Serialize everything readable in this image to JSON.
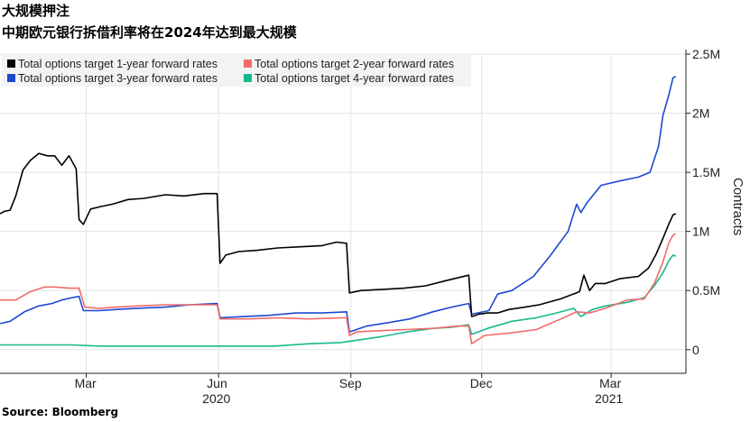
{
  "header": {
    "title": "大规模押注",
    "subtitle": "中期欧元银行拆借利率将在2024年达到最大规模"
  },
  "footer": {
    "source": "Source: Bloomberg"
  },
  "chart_data": {
    "type": "line",
    "title": "大规模押注",
    "subtitle": "中期欧元银行拆借利率将在2024年达到最大规模",
    "ylabel": "Contracts",
    "y_axis_position": "right",
    "y_unit": "contracts",
    "ylim": [
      -200000,
      2500000
    ],
    "yticks": [
      0,
      500000,
      1000000,
      1500000,
      2000000,
      2500000
    ],
    "ytick_labels": [
      "0",
      "0.5M",
      "1M",
      "1.5M",
      "2M",
      "2.5M"
    ],
    "xlim": [
      "2020-01-01",
      "2021-04-22"
    ],
    "xticks": [
      {
        "date": "2020-03-01",
        "label": "Mar"
      },
      {
        "date": "2020-06-01",
        "label": "Jun"
      },
      {
        "date": "2020-09-01",
        "label": "Sep"
      },
      {
        "date": "2020-12-01",
        "label": "Dec"
      },
      {
        "date": "2021-03-01",
        "label": "Mar"
      }
    ],
    "year_labels": [
      {
        "date": "2020-06-01",
        "label": "2020"
      },
      {
        "date": "2021-03-01",
        "label": "2021"
      }
    ],
    "grid": true,
    "legend_position": "top-left",
    "series": [
      {
        "name": "Total options target 1-year forward rates",
        "color": "#000000",
        "points": [
          [
            "2020-01-01",
            1150000
          ],
          [
            "2020-01-04",
            1170000
          ],
          [
            "2020-01-08",
            1180000
          ],
          [
            "2020-01-12",
            1300000
          ],
          [
            "2020-01-17",
            1520000
          ],
          [
            "2020-01-22",
            1600000
          ],
          [
            "2020-01-28",
            1660000
          ],
          [
            "2020-02-03",
            1640000
          ],
          [
            "2020-02-08",
            1640000
          ],
          [
            "2020-02-13",
            1560000
          ],
          [
            "2020-02-18",
            1640000
          ],
          [
            "2020-02-23",
            1530000
          ],
          [
            "2020-02-25",
            1100000
          ],
          [
            "2020-02-28",
            1060000
          ],
          [
            "2020-03-04",
            1190000
          ],
          [
            "2020-03-11",
            1210000
          ],
          [
            "2020-03-19",
            1230000
          ],
          [
            "2020-03-30",
            1270000
          ],
          [
            "2020-04-10",
            1280000
          ],
          [
            "2020-04-25",
            1310000
          ],
          [
            "2020-05-08",
            1300000
          ],
          [
            "2020-05-22",
            1320000
          ],
          [
            "2020-05-31",
            1320000
          ],
          [
            "2020-06-02",
            730000
          ],
          [
            "2020-06-06",
            800000
          ],
          [
            "2020-06-15",
            830000
          ],
          [
            "2020-06-28",
            840000
          ],
          [
            "2020-07-12",
            860000
          ],
          [
            "2020-07-28",
            870000
          ],
          [
            "2020-08-12",
            880000
          ],
          [
            "2020-08-22",
            910000
          ],
          [
            "2020-08-29",
            900000
          ],
          [
            "2020-08-31",
            480000
          ],
          [
            "2020-09-08",
            500000
          ],
          [
            "2020-09-23",
            510000
          ],
          [
            "2020-10-08",
            520000
          ],
          [
            "2020-10-23",
            540000
          ],
          [
            "2020-11-05",
            580000
          ],
          [
            "2020-11-15",
            610000
          ],
          [
            "2020-11-22",
            630000
          ],
          [
            "2020-11-24",
            280000
          ],
          [
            "2020-11-29",
            300000
          ],
          [
            "2020-12-05",
            310000
          ],
          [
            "2020-12-12",
            310000
          ],
          [
            "2020-12-20",
            340000
          ],
          [
            "2020-12-31",
            360000
          ],
          [
            "2021-01-10",
            380000
          ],
          [
            "2021-01-25",
            430000
          ],
          [
            "2021-02-07",
            490000
          ],
          [
            "2021-02-10",
            630000
          ],
          [
            "2021-02-14",
            500000
          ],
          [
            "2021-02-18",
            560000
          ],
          [
            "2021-02-25",
            560000
          ],
          [
            "2021-03-07",
            600000
          ],
          [
            "2021-03-20",
            620000
          ],
          [
            "2021-03-27",
            690000
          ],
          [
            "2021-04-01",
            800000
          ],
          [
            "2021-04-06",
            940000
          ],
          [
            "2021-04-10",
            1060000
          ],
          [
            "2021-04-13",
            1140000
          ],
          [
            "2021-04-15",
            1150000
          ]
        ]
      },
      {
        "name": "Total options target 2-year forward rates",
        "color": "#f06b6b",
        "points": [
          [
            "2020-01-01",
            420000
          ],
          [
            "2020-01-12",
            420000
          ],
          [
            "2020-01-22",
            490000
          ],
          [
            "2020-02-01",
            530000
          ],
          [
            "2020-02-08",
            530000
          ],
          [
            "2020-02-18",
            520000
          ],
          [
            "2020-02-25",
            520000
          ],
          [
            "2020-02-29",
            360000
          ],
          [
            "2020-03-10",
            350000
          ],
          [
            "2020-03-22",
            360000
          ],
          [
            "2020-04-05",
            370000
          ],
          [
            "2020-04-25",
            380000
          ],
          [
            "2020-05-15",
            380000
          ],
          [
            "2020-05-31",
            380000
          ],
          [
            "2020-06-02",
            260000
          ],
          [
            "2020-06-22",
            260000
          ],
          [
            "2020-07-12",
            270000
          ],
          [
            "2020-08-02",
            260000
          ],
          [
            "2020-08-29",
            270000
          ],
          [
            "2020-08-31",
            120000
          ],
          [
            "2020-09-05",
            150000
          ],
          [
            "2020-09-20",
            160000
          ],
          [
            "2020-10-08",
            170000
          ],
          [
            "2020-10-28",
            180000
          ],
          [
            "2020-11-15",
            200000
          ],
          [
            "2020-11-22",
            200000
          ],
          [
            "2020-11-24",
            50000
          ],
          [
            "2020-12-03",
            120000
          ],
          [
            "2020-12-20",
            140000
          ],
          [
            "2021-01-08",
            170000
          ],
          [
            "2021-01-25",
            260000
          ],
          [
            "2021-02-05",
            320000
          ],
          [
            "2021-02-14",
            310000
          ],
          [
            "2021-02-25",
            350000
          ],
          [
            "2021-03-12",
            420000
          ],
          [
            "2021-03-24",
            430000
          ],
          [
            "2021-03-31",
            560000
          ],
          [
            "2021-04-06",
            740000
          ],
          [
            "2021-04-10",
            900000
          ],
          [
            "2021-04-13",
            970000
          ],
          [
            "2021-04-15",
            980000
          ]
        ]
      },
      {
        "name": "Total options target 3-year forward rates",
        "color": "#1e48d0",
        "points": [
          [
            "2020-01-01",
            220000
          ],
          [
            "2020-01-08",
            240000
          ],
          [
            "2020-01-18",
            320000
          ],
          [
            "2020-01-28",
            370000
          ],
          [
            "2020-02-06",
            390000
          ],
          [
            "2020-02-13",
            420000
          ],
          [
            "2020-02-20",
            440000
          ],
          [
            "2020-02-25",
            450000
          ],
          [
            "2020-02-28",
            330000
          ],
          [
            "2020-03-10",
            330000
          ],
          [
            "2020-03-22",
            340000
          ],
          [
            "2020-04-05",
            350000
          ],
          [
            "2020-04-25",
            360000
          ],
          [
            "2020-05-12",
            380000
          ],
          [
            "2020-05-31",
            390000
          ],
          [
            "2020-06-02",
            270000
          ],
          [
            "2020-06-18",
            280000
          ],
          [
            "2020-07-05",
            290000
          ],
          [
            "2020-07-25",
            310000
          ],
          [
            "2020-08-12",
            310000
          ],
          [
            "2020-08-29",
            320000
          ],
          [
            "2020-08-31",
            150000
          ],
          [
            "2020-09-12",
            200000
          ],
          [
            "2020-09-28",
            230000
          ],
          [
            "2020-10-12",
            260000
          ],
          [
            "2020-10-28",
            320000
          ],
          [
            "2020-11-10",
            360000
          ],
          [
            "2020-11-22",
            390000
          ],
          [
            "2020-11-24",
            300000
          ],
          [
            "2020-12-06",
            330000
          ],
          [
            "2020-12-12",
            470000
          ],
          [
            "2020-12-22",
            500000
          ],
          [
            "2021-01-06",
            620000
          ],
          [
            "2021-01-18",
            800000
          ],
          [
            "2021-01-30",
            1000000
          ],
          [
            "2021-02-05",
            1230000
          ],
          [
            "2021-02-08",
            1160000
          ],
          [
            "2021-02-12",
            1240000
          ],
          [
            "2021-02-22",
            1390000
          ],
          [
            "2021-03-08",
            1430000
          ],
          [
            "2021-03-20",
            1460000
          ],
          [
            "2021-03-28",
            1500000
          ],
          [
            "2021-04-03",
            1720000
          ],
          [
            "2021-04-06",
            1980000
          ],
          [
            "2021-04-10",
            2150000
          ],
          [
            "2021-04-13",
            2300000
          ],
          [
            "2021-04-15",
            2310000
          ]
        ]
      },
      {
        "name": "Total options target 4-year forward rates",
        "color": "#18b88e",
        "points": [
          [
            "2020-01-01",
            40000
          ],
          [
            "2020-01-25",
            40000
          ],
          [
            "2020-02-20",
            40000
          ],
          [
            "2020-03-10",
            30000
          ],
          [
            "2020-04-10",
            30000
          ],
          [
            "2020-05-10",
            30000
          ],
          [
            "2020-06-10",
            30000
          ],
          [
            "2020-07-10",
            30000
          ],
          [
            "2020-08-03",
            50000
          ],
          [
            "2020-08-25",
            60000
          ],
          [
            "2020-09-05",
            80000
          ],
          [
            "2020-09-22",
            110000
          ],
          [
            "2020-10-10",
            150000
          ],
          [
            "2020-10-28",
            180000
          ],
          [
            "2020-11-10",
            190000
          ],
          [
            "2020-11-22",
            210000
          ],
          [
            "2020-11-24",
            130000
          ],
          [
            "2020-12-05",
            180000
          ],
          [
            "2020-12-22",
            240000
          ],
          [
            "2021-01-08",
            270000
          ],
          [
            "2021-01-22",
            310000
          ],
          [
            "2021-02-03",
            350000
          ],
          [
            "2021-02-08",
            280000
          ],
          [
            "2021-02-16",
            340000
          ],
          [
            "2021-02-25",
            370000
          ],
          [
            "2021-03-12",
            400000
          ],
          [
            "2021-03-24",
            440000
          ],
          [
            "2021-03-31",
            540000
          ],
          [
            "2021-04-06",
            650000
          ],
          [
            "2021-04-10",
            750000
          ],
          [
            "2021-04-13",
            800000
          ],
          [
            "2021-04-15",
            790000
          ]
        ]
      }
    ]
  }
}
